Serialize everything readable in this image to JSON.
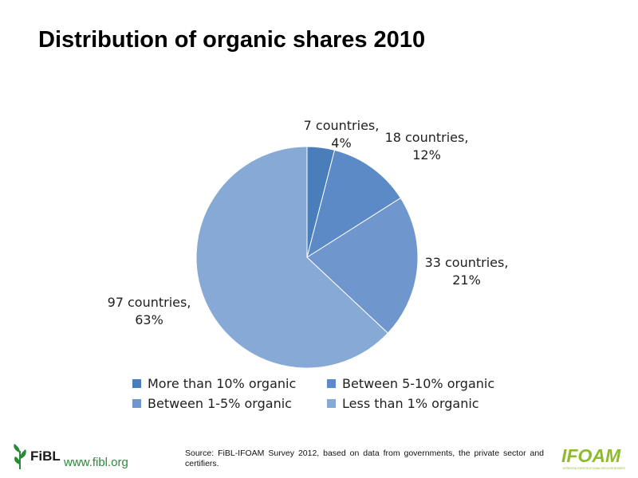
{
  "title": "Distribution of organic shares 2010",
  "chart_data": {
    "type": "pie",
    "title": "",
    "slices": [
      {
        "name": "More than 10% organic",
        "value": 4,
        "label_line1": "7 countries,",
        "label_line2": "4%",
        "color": "#4a7ebb"
      },
      {
        "name": "Between 5-10% organic",
        "value": 12,
        "label_line1": "18 countries,",
        "label_line2": "12%",
        "color": "#5b8ac6"
      },
      {
        "name": "Between 1-5% organic",
        "value": 21,
        "label_line1": "33 countries,",
        "label_line2": "21%",
        "color": "#7097cd"
      },
      {
        "name": "Less than 1% organic",
        "value": 63,
        "label_line1": "97 countries,",
        "label_line2": "63%",
        "color": "#86a9d6"
      }
    ],
    "legend_position": "bottom"
  },
  "legend": {
    "items": [
      "More than 10% organic",
      "Between 5-10% organic",
      "Between 1-5% organic",
      "Less than 1% organic"
    ]
  },
  "footer": {
    "fibl_logo": "FiBL",
    "fibl_url": "www.fibl.org",
    "source": "Source: FiBL-IFOAM Survey 2012, based on data from governments, the private sector and certifiers.",
    "ifoam_logo": "IFOAM",
    "ifoam_tagline": "INTERNATIONAL FEDERATION OF ORGANIC AGRICULTURE MOVEMENTS"
  },
  "colors": {
    "fibl_green": "#2a8a3a",
    "ifoam_green": "#8dbb2b"
  }
}
